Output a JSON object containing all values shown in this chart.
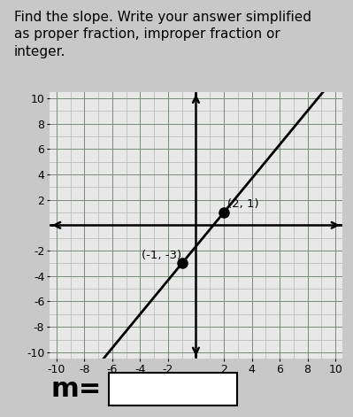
{
  "title": "Find the slope. Write your answer simplified\nas proper fraction, improper fraction or\ninteger.",
  "xlim": [
    -10.5,
    10.5
  ],
  "ylim": [
    -10.5,
    10.5
  ],
  "xtick_major": [
    -10,
    -8,
    -6,
    -4,
    -2,
    2,
    4,
    6,
    8,
    10
  ],
  "ytick_major": [
    -10,
    -8,
    -6,
    -4,
    -2,
    2,
    4,
    6,
    8,
    10
  ],
  "xtick_labels": [
    "-10",
    "-8",
    "-6",
    "-4",
    "-2",
    "2",
    "4",
    "6",
    "8",
    "10"
  ],
  "ytick_labels": [
    "-10",
    "-8",
    "-6",
    "-4",
    "-2",
    "2",
    "4",
    "6",
    "8",
    "10"
  ],
  "point1": [
    2,
    1
  ],
  "point2": [
    -1,
    -3
  ],
  "point1_label": "(2, 1)",
  "point2_label": "(-1, -3)",
  "line_color": "#000000",
  "point_color": "#000000",
  "line_extend_x_min": -7.5,
  "line_extend_x_max": 9.8,
  "bg_color": "#e8e8e8",
  "grid_minor_color": "#b0b8b0",
  "grid_major_color": "#7a8a7a",
  "axes_color": "#000000",
  "m_label": "m=",
  "outer_bg": "#c8c8c8",
  "title_fontsize": 11,
  "tick_fontsize": 9,
  "label_fontsize": 9.5
}
